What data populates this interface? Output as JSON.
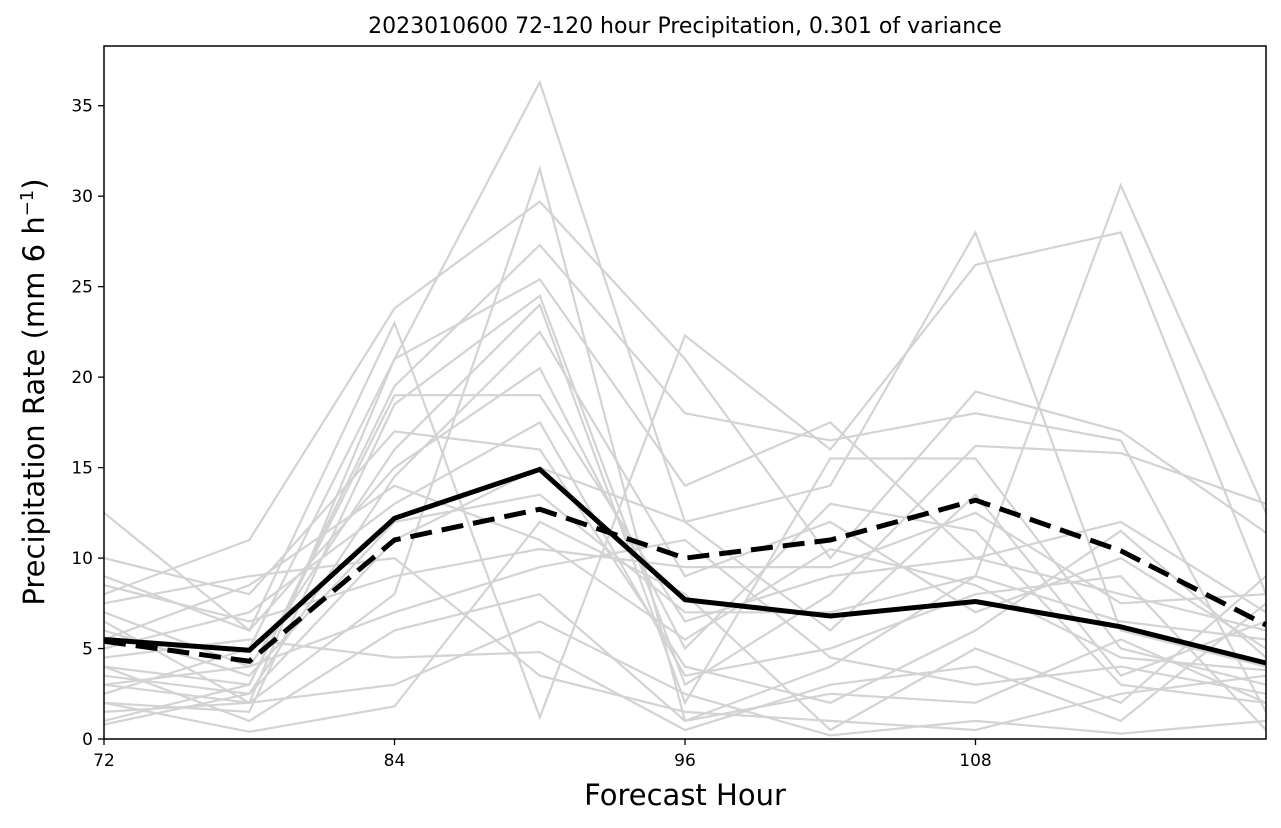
{
  "chart_data": {
    "type": "line",
    "title": "2023010600 72-120 hour Precipitation, 0.301 of variance",
    "xlabel": "Forecast Hour",
    "ylabel_main": "Precipitation Rate (mm 6 h",
    "ylabel_sup": "−1",
    "ylabel_close": ")",
    "xlim": [
      72,
      120
    ],
    "ylim": [
      0,
      38.3
    ],
    "x": [
      72,
      78,
      84,
      90,
      96,
      102,
      108,
      114,
      120
    ],
    "x_ticks": [
      72,
      84,
      96,
      108
    ],
    "x_tick_labels": [
      "72",
      "84",
      "96",
      "108"
    ],
    "y_ticks": [
      0,
      5,
      10,
      15,
      20,
      25,
      30,
      35
    ],
    "y_tick_labels": [
      "0",
      "5",
      "10",
      "15",
      "20",
      "25",
      "30",
      "35"
    ],
    "grid": false,
    "colors": {
      "ensemble": "#d3d3d3",
      "highlight": "#000000"
    },
    "series": [
      {
        "values": [
          5.5,
          4.9,
          12.2,
          14.9,
          7.7,
          6.8,
          7.6,
          6.2,
          4.2
        ],
        "style": "solid",
        "role": "highlight"
      },
      {
        "values": [
          5.4,
          4.3,
          11.0,
          12.7,
          10.0,
          11.0,
          13.2,
          10.4,
          6.3
        ],
        "style": "dashed",
        "role": "highlight"
      },
      {
        "values": [
          2.5,
          5.0,
          21.0,
          36.3,
          12.0,
          14.0,
          28.0,
          6.0,
          4.0
        ],
        "style": "solid",
        "role": "ensemble"
      },
      {
        "values": [
          3.0,
          2.0,
          8.0,
          31.5,
          1.0,
          4.0,
          9.0,
          30.6,
          12.5
        ],
        "style": "solid",
        "role": "ensemble"
      },
      {
        "values": [
          12.5,
          6.0,
          23.0,
          1.2,
          22.3,
          16.0,
          26.2,
          28.0,
          8.0
        ],
        "style": "solid",
        "role": "ensemble"
      },
      {
        "values": [
          8.0,
          11.0,
          23.8,
          29.7,
          21.0,
          10.0,
          19.2,
          17.0,
          11.4
        ],
        "style": "solid",
        "role": "ensemble"
      },
      {
        "values": [
          4.0,
          3.0,
          19.5,
          27.3,
          18.0,
          16.5,
          18.0,
          16.5,
          1.5
        ],
        "style": "solid",
        "role": "ensemble"
      },
      {
        "values": [
          6.5,
          2.0,
          21.0,
          25.4,
          14.0,
          17.5,
          10.0,
          12.0,
          7.0
        ],
        "style": "solid",
        "role": "ensemble"
      },
      {
        "values": [
          2.0,
          1.5,
          18.5,
          24.5,
          3.0,
          8.0,
          16.2,
          15.8,
          13.0
        ],
        "style": "solid",
        "role": "ensemble"
      },
      {
        "values": [
          7.0,
          4.0,
          16.0,
          24.0,
          2.0,
          15.5,
          15.5,
          5.0,
          3.0
        ],
        "style": "solid",
        "role": "ensemble"
      },
      {
        "values": [
          3.5,
          2.5,
          14.5,
          22.5,
          9.0,
          12.0,
          7.0,
          10.0,
          5.0
        ],
        "style": "solid",
        "role": "ensemble"
      },
      {
        "values": [
          9.0,
          6.0,
          15.0,
          20.5,
          5.0,
          13.0,
          11.5,
          3.0,
          2.0
        ],
        "style": "solid",
        "role": "ensemble"
      },
      {
        "values": [
          1.0,
          3.0,
          19.0,
          19.0,
          6.5,
          9.0,
          10.0,
          8.0,
          6.0
        ],
        "style": "solid",
        "role": "ensemble"
      },
      {
        "values": [
          5.0,
          7.0,
          13.0,
          17.5,
          3.5,
          5.0,
          8.0,
          9.0,
          0.5
        ],
        "style": "solid",
        "role": "ensemble"
      },
      {
        "values": [
          10.0,
          8.0,
          17.0,
          16.0,
          4.0,
          2.0,
          6.0,
          11.5,
          4.5
        ],
        "style": "solid",
        "role": "ensemble"
      },
      {
        "values": [
          2.0,
          0.4,
          1.8,
          12.0,
          8.0,
          0.5,
          5.0,
          2.0,
          9.0
        ],
        "style": "solid",
        "role": "ensemble"
      },
      {
        "values": [
          4.5,
          5.5,
          4.5,
          4.8,
          0.5,
          3.0,
          4.0,
          1.0,
          7.5
        ],
        "style": "solid",
        "role": "ensemble"
      },
      {
        "values": [
          7.5,
          9.0,
          10.0,
          3.5,
          1.5,
          1.0,
          0.5,
          2.5,
          3.5
        ],
        "style": "solid",
        "role": "ensemble"
      },
      {
        "values": [
          1.5,
          2.0,
          3.0,
          6.5,
          2.5,
          0.2,
          1.0,
          0.3,
          1.0
        ],
        "style": "solid",
        "role": "ensemble"
      },
      {
        "values": [
          3.0,
          4.0,
          7.0,
          9.5,
          11.0,
          4.5,
          3.0,
          4.0,
          2.5
        ],
        "style": "solid",
        "role": "ensemble"
      },
      {
        "values": [
          6.0,
          3.5,
          12.0,
          13.5,
          7.0,
          7.0,
          9.0,
          6.5,
          5.5
        ],
        "style": "solid",
        "role": "ensemble"
      },
      {
        "values": [
          8.5,
          6.5,
          9.0,
          10.5,
          9.5,
          9.5,
          12.5,
          7.5,
          8.0
        ],
        "style": "solid",
        "role": "ensemble"
      },
      {
        "values": [
          4.0,
          1.0,
          6.0,
          8.0,
          1.0,
          2.5,
          2.0,
          5.5,
          2.0
        ],
        "style": "solid",
        "role": "ensemble"
      },
      {
        "values": [
          0.8,
          2.5,
          11.0,
          15.0,
          12.0,
          6.0,
          13.5,
          3.5,
          6.5
        ],
        "style": "solid",
        "role": "ensemble"
      },
      {
        "values": [
          5.5,
          8.5,
          14.0,
          11.0,
          5.5,
          10.5,
          8.5,
          4.5,
          3.8
        ],
        "style": "solid",
        "role": "ensemble"
      }
    ]
  }
}
